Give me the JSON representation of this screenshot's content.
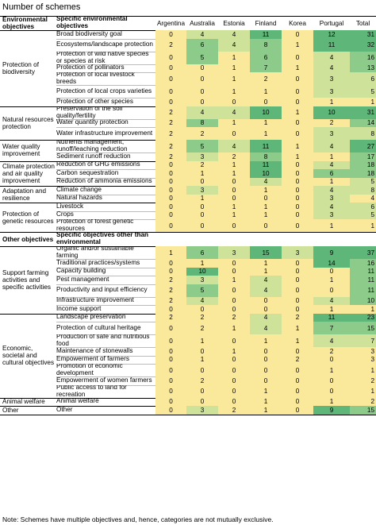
{
  "title": "Number of schemes",
  "note": "Note: Schemes have multiple objectives and, hence, categories are not mutually exclusive.",
  "header": {
    "cat": "Environmental objectives",
    "sub": "Specific environmental objectives",
    "countries": [
      "Argentina",
      "Australia",
      "Estonia",
      "Finland",
      "Korea",
      "Portugal",
      "Total"
    ]
  },
  "header2": {
    "cat": "Other objectives",
    "sub": "Specific objectives other than environmental"
  },
  "groups": [
    {
      "category": "Protection of biodiversity",
      "rows": [
        {
          "label": "Broad biodiversity goal",
          "values": [
            0,
            4,
            4,
            11,
            0,
            12,
            31
          ]
        },
        {
          "label": "Ecosystems/landscape protection",
          "values": [
            2,
            6,
            4,
            8,
            1,
            11,
            32
          ]
        },
        {
          "label": "Protection of wild native species or species at risk",
          "values": [
            0,
            5,
            1,
            6,
            0,
            4,
            16
          ]
        },
        {
          "label": "Protection of pollinators",
          "values": [
            0,
            0,
            1,
            7,
            1,
            4,
            13
          ]
        },
        {
          "label": "Protection of local livestock breeds",
          "values": [
            0,
            0,
            1,
            2,
            0,
            3,
            6
          ]
        },
        {
          "label": "Protection of local crops varieties",
          "values": [
            0,
            0,
            1,
            1,
            0,
            3,
            5
          ]
        },
        {
          "label": "Protection of other species",
          "values": [
            0,
            0,
            0,
            0,
            0,
            1,
            1
          ]
        }
      ]
    },
    {
      "category": "Natural resources protection",
      "rows": [
        {
          "label": "Preservation of the soil quality/fertility",
          "values": [
            2,
            4,
            4,
            10,
            1,
            10,
            31
          ]
        },
        {
          "label": "Water quantity protection",
          "values": [
            2,
            8,
            1,
            1,
            0,
            2,
            14
          ]
        },
        {
          "label": "Water infrastructure improvement",
          "values": [
            2,
            2,
            0,
            1,
            0,
            3,
            8
          ]
        }
      ]
    },
    {
      "category": "Water quality improvement",
      "rows": [
        {
          "label": "Nutrients management, runoff/leaching reduction",
          "values": [
            2,
            5,
            4,
            11,
            1,
            4,
            27
          ]
        },
        {
          "label": "Sediment runoff reduction",
          "values": [
            2,
            3,
            2,
            8,
            1,
            1,
            17
          ]
        }
      ]
    },
    {
      "category": "Climate protection and air quality improvement",
      "rows": [
        {
          "label": "Reduction of GHG emissions",
          "values": [
            0,
            2,
            1,
            11,
            0,
            4,
            18
          ]
        },
        {
          "label": "Carbon sequestration",
          "values": [
            0,
            1,
            1,
            10,
            0,
            6,
            18
          ]
        },
        {
          "label": "Reduction of ammonia emissions",
          "values": [
            0,
            0,
            0,
            4,
            0,
            1,
            5
          ]
        }
      ]
    },
    {
      "category": "Adaptation and resilience",
      "rows": [
        {
          "label": "Climate change",
          "values": [
            0,
            3,
            0,
            1,
            0,
            4,
            8
          ]
        },
        {
          "label": "Natural hazards",
          "values": [
            0,
            1,
            0,
            0,
            0,
            3,
            4
          ]
        }
      ]
    },
    {
      "category": "Protection of genetic resources",
      "rows": [
        {
          "label": "Livestock",
          "values": [
            0,
            0,
            1,
            1,
            0,
            4,
            6
          ]
        },
        {
          "label": "Crops",
          "values": [
            0,
            0,
            1,
            1,
            0,
            3,
            5
          ]
        },
        {
          "label": "Protection of forest genetic resources",
          "values": [
            0,
            0,
            0,
            0,
            0,
            1,
            1
          ]
        }
      ]
    }
  ],
  "groups2": [
    {
      "category": "Support farming activities and specific activities",
      "rows": [
        {
          "label": "Organic and/or sustainable farming",
          "values": [
            1,
            6,
            3,
            15,
            3,
            9,
            37
          ]
        },
        {
          "label": "Traditional practices/systems",
          "values": [
            0,
            1,
            0,
            1,
            0,
            14,
            16
          ]
        },
        {
          "label": "Capacity building",
          "values": [
            0,
            10,
            0,
            1,
            0,
            0,
            11
          ]
        },
        {
          "label": "Pest management",
          "values": [
            2,
            3,
            1,
            4,
            0,
            1,
            11
          ]
        },
        {
          "label": "Productivity and input efficiency",
          "values": [
            2,
            5,
            0,
            4,
            0,
            0,
            11
          ]
        },
        {
          "label": "Infrastructure improvement",
          "values": [
            2,
            4,
            0,
            0,
            0,
            4,
            10
          ]
        },
        {
          "label": "Income support",
          "values": [
            0,
            0,
            0,
            0,
            0,
            1,
            1
          ]
        }
      ]
    },
    {
      "category": "Economic, societal and cultural objectives",
      "rows": [
        {
          "label": "Landscape preservation",
          "values": [
            2,
            2,
            2,
            4,
            2,
            11,
            23
          ]
        },
        {
          "label": "Protection of cultural heritage",
          "values": [
            0,
            2,
            1,
            4,
            1,
            7,
            15
          ]
        },
        {
          "label": "Production of safe and nutritious food",
          "values": [
            0,
            1,
            0,
            1,
            1,
            4,
            7
          ]
        },
        {
          "label": "Maintenance of stonewalls",
          "values": [
            0,
            0,
            1,
            0,
            0,
            2,
            3
          ]
        },
        {
          "label": "Empowerment of farmers",
          "values": [
            0,
            1,
            0,
            0,
            2,
            0,
            3
          ]
        },
        {
          "label": "Promotion of economic development",
          "values": [
            0,
            0,
            0,
            0,
            0,
            1,
            1
          ]
        },
        {
          "label": "Empowerment of women farmers",
          "values": [
            0,
            2,
            0,
            0,
            0,
            0,
            2
          ]
        },
        {
          "label": "Public access to land for recreation",
          "values": [
            0,
            0,
            0,
            1,
            0,
            0,
            1
          ]
        }
      ]
    },
    {
      "category": "Animal welfare",
      "rows": [
        {
          "label": "Animal welfare",
          "values": [
            0,
            0,
            0,
            1,
            0,
            1,
            2
          ]
        }
      ]
    },
    {
      "category": "Other",
      "rows": [
        {
          "label": "Other",
          "values": [
            0,
            3,
            2,
            1,
            0,
            9,
            15
          ]
        }
      ]
    }
  ],
  "colors": {
    "low": "#fbe99b",
    "mid": "#cfe29a",
    "high": "#8ccb8a",
    "top": "#5fb679"
  }
}
